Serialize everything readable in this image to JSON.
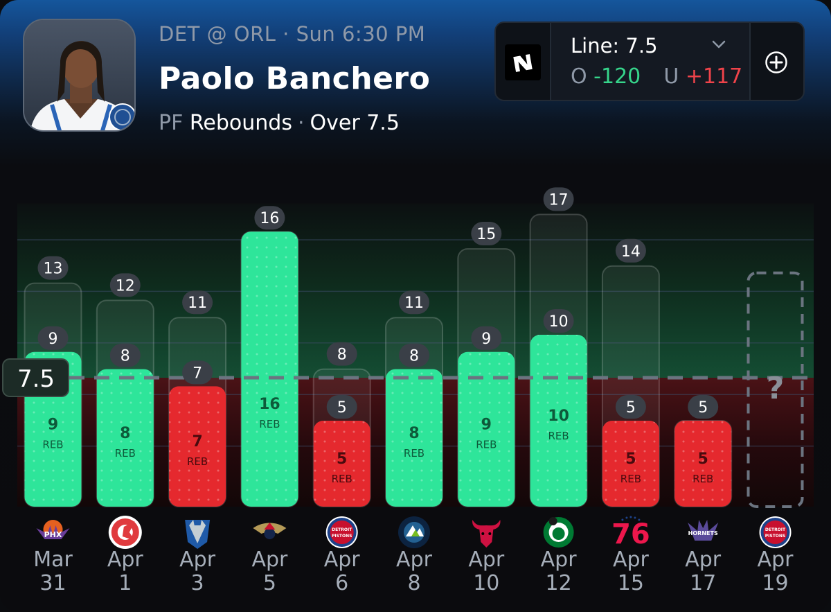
{
  "header": {
    "game_info": "DET @ ORL · Sun 6:30 PM",
    "player_name": "Paolo Banchero",
    "position": "PF",
    "stat": "Rebounds",
    "pick": "Over 7.5"
  },
  "line_box": {
    "line_label": "Line: 7.5",
    "over_prefix": "O",
    "over_odds": "-120",
    "under_prefix": "U",
    "under_odds": "+117",
    "book_icon": "sportsbook-logo-icon",
    "add_icon": "plus-circle-icon"
  },
  "colors": {
    "hit": "#2ee59a",
    "miss": "#e5292e",
    "pending": "#6b7480",
    "over_odds": "#36d58b",
    "under_odds": "#f0434a"
  },
  "chart_data": {
    "type": "bar",
    "title": "",
    "ylabel": "",
    "xlabel": "",
    "line": 7.5,
    "line_label": "7.5",
    "value_unit": "REB",
    "pending_marker": "?",
    "ylim": [
      0,
      17
    ],
    "games": [
      {
        "month": "Mar",
        "day": "31",
        "opponent": "PHX",
        "value": 9,
        "total": 13
      },
      {
        "month": "Apr",
        "day": "1",
        "opponent": "ATL",
        "value": 8,
        "total": 12
      },
      {
        "month": "Apr",
        "day": "3",
        "opponent": "DAL",
        "value": 7,
        "total": 11
      },
      {
        "month": "Apr",
        "day": "5",
        "opponent": "NOP",
        "value": 16,
        "total": 16
      },
      {
        "month": "Apr",
        "day": "6",
        "opponent": "DET",
        "value": 5,
        "total": 8
      },
      {
        "month": "Apr",
        "day": "8",
        "opponent": "MIN",
        "value": 8,
        "total": 11
      },
      {
        "month": "Apr",
        "day": "10",
        "opponent": "CHI",
        "value": 9,
        "total": 15
      },
      {
        "month": "Apr",
        "day": "12",
        "opponent": "BOS",
        "value": 10,
        "total": 17
      },
      {
        "month": "Apr",
        "day": "15",
        "opponent": "PHI",
        "value": 5,
        "total": 14
      },
      {
        "month": "Apr",
        "day": "17",
        "opponent": "CHA",
        "value": 5,
        "total": 5
      },
      {
        "month": "Apr",
        "day": "19",
        "opponent": "DET",
        "value": null,
        "total": null
      }
    ],
    "team_logo_text": {
      "PHX": "PHX",
      "DET": "DETROIT PISTONS",
      "MIN": "MIN",
      "PHI": "76",
      "CHA": "HORNETS"
    }
  }
}
